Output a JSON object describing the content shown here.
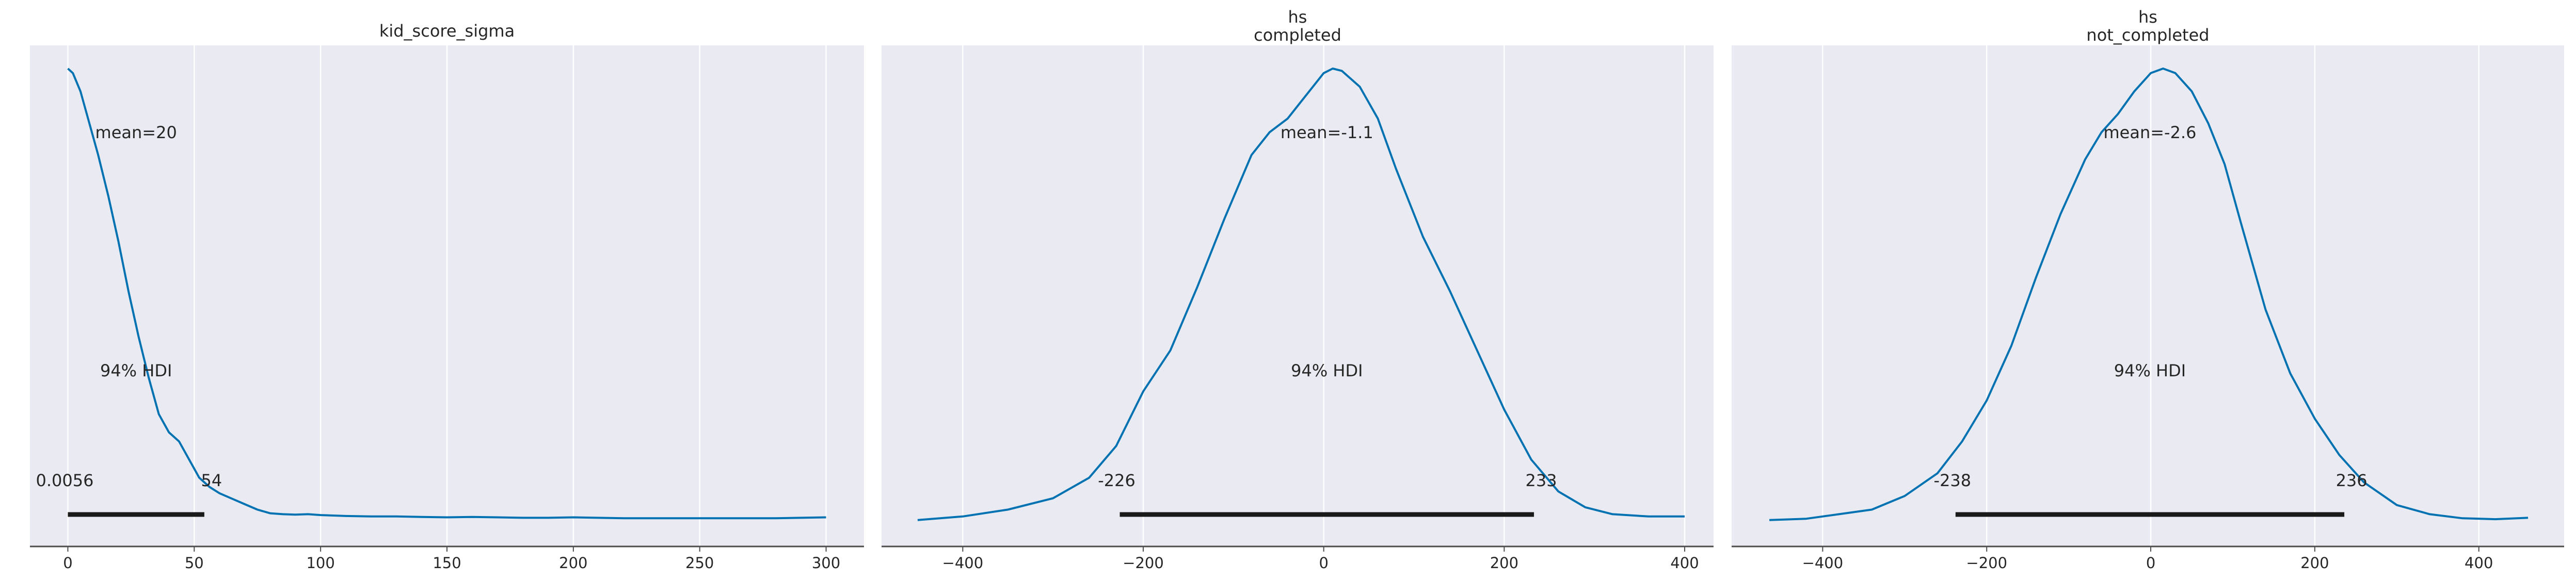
{
  "style": {
    "panel_bg": "#eaeaf2",
    "grid_color": "#ffffff",
    "kde_color": "#0072b2",
    "hdi_color": "#1a1a1a",
    "axis_color": "#4d4d4d",
    "text_color": "#262626"
  },
  "chart_data": [
    {
      "type": "area",
      "title_lines": [
        "kid_score_sigma"
      ],
      "xlim": [
        -15,
        315
      ],
      "xticks": [
        0,
        50,
        100,
        150,
        200,
        250,
        300
      ],
      "xtick_labels": [
        "0",
        "50",
        "100",
        "150",
        "200",
        "250",
        "300"
      ],
      "grid": true,
      "mean_label": "mean=20",
      "hdi": {
        "low": 0.0056,
        "high": 54,
        "low_label": "0.0056",
        "high_label": "54",
        "label": "94% HDI"
      },
      "density": {
        "x": [
          0,
          2,
          5,
          8,
          12,
          16,
          20,
          24,
          28,
          32,
          36,
          40,
          44,
          48,
          52,
          56,
          60,
          65,
          70,
          75,
          80,
          85,
          90,
          95,
          100,
          110,
          120,
          130,
          140,
          150,
          160,
          170,
          180,
          190,
          200,
          220,
          240,
          260,
          280,
          300
        ],
        "y": [
          1.0,
          0.99,
          0.95,
          0.89,
          0.81,
          0.72,
          0.62,
          0.51,
          0.41,
          0.32,
          0.24,
          0.2,
          0.18,
          0.14,
          0.1,
          0.08,
          0.066,
          0.054,
          0.042,
          0.03,
          0.022,
          0.02,
          0.019,
          0.02,
          0.018,
          0.016,
          0.015,
          0.015,
          0.014,
          0.013,
          0.014,
          0.013,
          0.012,
          0.012,
          0.013,
          0.011,
          0.011,
          0.011,
          0.011,
          0.013
        ]
      }
    },
    {
      "type": "area",
      "title_lines": [
        "hs",
        "completed"
      ],
      "xlim": [
        -490,
        432
      ],
      "xticks": [
        -400,
        -200,
        0,
        200,
        400
      ],
      "xtick_labels": [
        "−400",
        "−200",
        "0",
        "200",
        "400"
      ],
      "grid": true,
      "mean_label": "mean=-1.1",
      "hdi": {
        "low": -226,
        "high": 233,
        "low_label": "-226",
        "high_label": "233",
        "label": "94% HDI"
      },
      "density": {
        "x": [
          -450,
          -400,
          -350,
          -300,
          -260,
          -230,
          -200,
          -170,
          -140,
          -110,
          -80,
          -60,
          -40,
          -20,
          0,
          10,
          20,
          40,
          60,
          80,
          110,
          140,
          170,
          200,
          230,
          260,
          290,
          320,
          360,
          400
        ],
        "y": [
          0.007,
          0.015,
          0.03,
          0.055,
          0.1,
          0.17,
          0.29,
          0.38,
          0.52,
          0.67,
          0.81,
          0.86,
          0.89,
          0.94,
          0.99,
          1.0,
          0.995,
          0.96,
          0.89,
          0.78,
          0.63,
          0.51,
          0.38,
          0.25,
          0.14,
          0.07,
          0.035,
          0.02,
          0.015,
          0.015
        ]
      }
    },
    {
      "type": "area",
      "title_lines": [
        "hs",
        "not_completed"
      ],
      "xlim": [
        -511,
        504
      ],
      "xticks": [
        -400,
        -200,
        0,
        200,
        400
      ],
      "xtick_labels": [
        "−400",
        "−200",
        "0",
        "200",
        "400"
      ],
      "grid": true,
      "mean_label": "mean=-2.6",
      "hdi": {
        "low": -238,
        "high": 236,
        "low_label": "-238",
        "high_label": "236",
        "label": "94% HDI"
      },
      "density": {
        "x": [
          -465,
          -420,
          -380,
          -340,
          -300,
          -260,
          -230,
          -200,
          -170,
          -140,
          -110,
          -80,
          -60,
          -40,
          -20,
          0,
          15,
          30,
          50,
          70,
          90,
          110,
          140,
          170,
          200,
          230,
          260,
          300,
          340,
          380,
          420,
          460
        ],
        "y": [
          0.007,
          0.01,
          0.02,
          0.03,
          0.06,
          0.11,
          0.18,
          0.27,
          0.39,
          0.54,
          0.68,
          0.8,
          0.86,
          0.9,
          0.95,
          0.99,
          1.0,
          0.99,
          0.95,
          0.88,
          0.79,
          0.66,
          0.47,
          0.33,
          0.23,
          0.15,
          0.09,
          0.04,
          0.02,
          0.011,
          0.009,
          0.012
        ]
      }
    }
  ]
}
